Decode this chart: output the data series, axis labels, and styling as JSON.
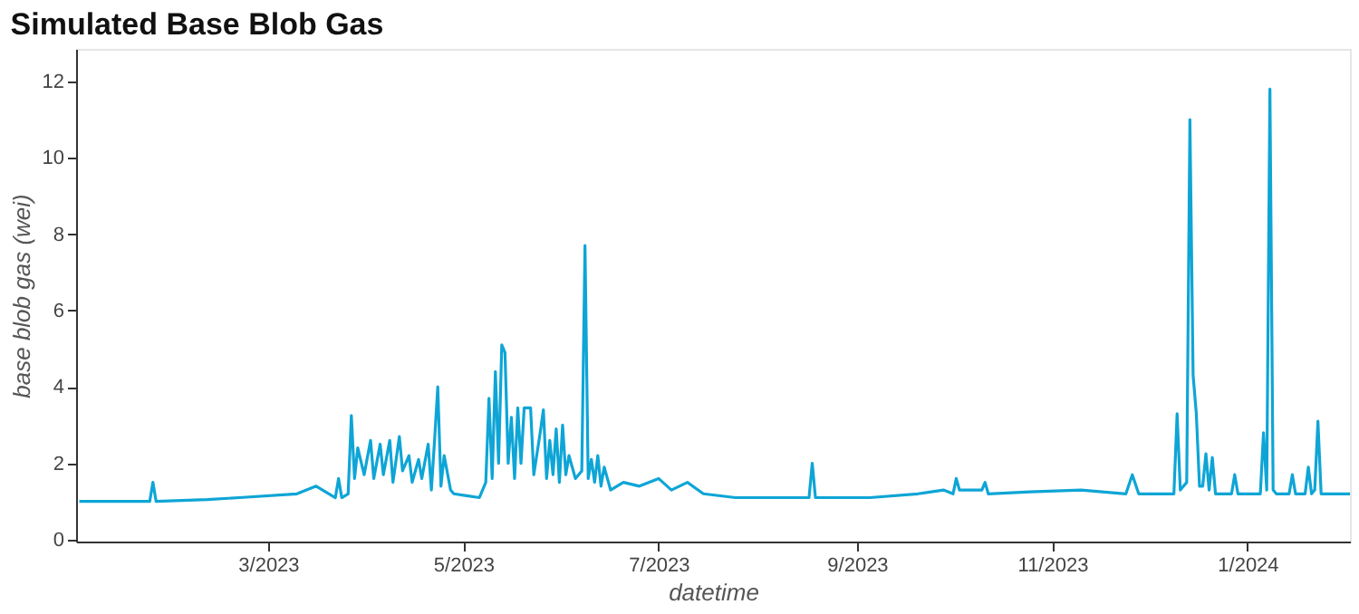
{
  "chart_data": {
    "type": "line",
    "title": "Simulated Base Blob Gas",
    "xlabel": "datetime",
    "ylabel": "base blob gas (wei)",
    "x": [
      "2023-01-01",
      "2023-01-23",
      "2023-01-24",
      "2023-01-25",
      "2023-02-10",
      "2023-02-20",
      "2023-03-10",
      "2023-03-16",
      "2023-03-22",
      "2023-03-23",
      "2023-03-24",
      "2023-03-26",
      "2023-03-27",
      "2023-03-28",
      "2023-03-29",
      "2023-03-31",
      "2023-04-02",
      "2023-04-03",
      "2023-04-05",
      "2023-04-06",
      "2023-04-08",
      "2023-04-09",
      "2023-04-11",
      "2023-04-12",
      "2023-04-14",
      "2023-04-15",
      "2023-04-17",
      "2023-04-18",
      "2023-04-20",
      "2023-04-21",
      "2023-04-22",
      "2023-04-23",
      "2023-04-24",
      "2023-04-25",
      "2023-04-27",
      "2023-04-28",
      "2023-05-02",
      "2023-05-06",
      "2023-05-08",
      "2023-05-09",
      "2023-05-10",
      "2023-05-11",
      "2023-05-12",
      "2023-05-13",
      "2023-05-14",
      "2023-05-15",
      "2023-05-16",
      "2023-05-17",
      "2023-05-18",
      "2023-05-19",
      "2023-05-20",
      "2023-05-22",
      "2023-05-23",
      "2023-05-25",
      "2023-05-26",
      "2023-05-27",
      "2023-05-28",
      "2023-05-29",
      "2023-05-30",
      "2023-05-31",
      "2023-06-01",
      "2023-06-02",
      "2023-06-03",
      "2023-06-05",
      "2023-06-07",
      "2023-06-08",
      "2023-06-09",
      "2023-06-10",
      "2023-06-11",
      "2023-06-12",
      "2023-06-13",
      "2023-06-14",
      "2023-06-16",
      "2023-06-20",
      "2023-06-25",
      "2023-07-01",
      "2023-07-05",
      "2023-07-10",
      "2023-07-15",
      "2023-07-25",
      "2023-08-10",
      "2023-08-17",
      "2023-08-18",
      "2023-08-19",
      "2023-09-05",
      "2023-09-20",
      "2023-09-28",
      "2023-10-01",
      "2023-10-02",
      "2023-10-03",
      "2023-10-10",
      "2023-10-11",
      "2023-10-12",
      "2023-10-25",
      "2023-11-10",
      "2023-11-24",
      "2023-11-26",
      "2023-11-28",
      "2023-12-08",
      "2023-12-09",
      "2023-12-10",
      "2023-12-11",
      "2023-12-13",
      "2023-12-14",
      "2023-12-15",
      "2023-12-16",
      "2023-12-17",
      "2023-12-18",
      "2023-12-19",
      "2023-12-20",
      "2023-12-21",
      "2023-12-22",
      "2023-12-27",
      "2023-12-28",
      "2023-12-29",
      "2024-01-05",
      "2024-01-06",
      "2024-01-07",
      "2024-01-08",
      "2024-01-09",
      "2024-01-10",
      "2024-01-14",
      "2024-01-15",
      "2024-01-16",
      "2024-01-19",
      "2024-01-20",
      "2024-01-21",
      "2024-01-22",
      "2024-01-23",
      "2024-01-24",
      "2024-02-02"
    ],
    "values": [
      1.0,
      1.0,
      1.5,
      1.0,
      1.05,
      1.1,
      1.2,
      1.4,
      1.1,
      1.6,
      1.1,
      1.2,
      3.25,
      1.6,
      2.4,
      1.7,
      2.6,
      1.6,
      2.5,
      1.7,
      2.6,
      1.5,
      2.7,
      1.8,
      2.2,
      1.5,
      2.1,
      1.6,
      2.5,
      1.3,
      2.6,
      4.0,
      1.4,
      2.2,
      1.3,
      1.2,
      1.15,
      1.1,
      1.5,
      3.7,
      1.6,
      4.4,
      2.0,
      5.1,
      4.9,
      2.0,
      3.2,
      1.6,
      3.45,
      2.0,
      3.45,
      3.45,
      1.7,
      2.8,
      3.4,
      1.6,
      2.6,
      1.7,
      2.9,
      1.5,
      3.0,
      1.7,
      2.2,
      1.6,
      1.8,
      7.7,
      1.6,
      2.1,
      1.5,
      2.2,
      1.4,
      1.9,
      1.3,
      1.5,
      1.4,
      1.6,
      1.3,
      1.5,
      1.2,
      1.1,
      1.1,
      1.1,
      2.0,
      1.1,
      1.1,
      1.2,
      1.3,
      1.2,
      1.6,
      1.3,
      1.3,
      1.5,
      1.2,
      1.25,
      1.3,
      1.2,
      1.7,
      1.2,
      1.2,
      1.2,
      3.3,
      1.3,
      1.5,
      11.0,
      4.3,
      3.3,
      1.4,
      1.4,
      2.25,
      1.3,
      2.15,
      1.2,
      1.2,
      1.7,
      1.2,
      1.2,
      2.8,
      1.3,
      11.8,
      1.3,
      1.2,
      1.2,
      1.7,
      1.2,
      1.2,
      1.9,
      1.2,
      1.3,
      3.1,
      1.2,
      1.2
    ],
    "color": "#0ea5d6",
    "xlim": [
      "2022-12-31",
      "2024-02-02"
    ],
    "xticks": [
      {
        "value": "2023-03-01",
        "label": "3/2023"
      },
      {
        "value": "2023-05-01",
        "label": "5/2023"
      },
      {
        "value": "2023-07-01",
        "label": "7/2023"
      },
      {
        "value": "2023-09-01",
        "label": "9/2023"
      },
      {
        "value": "2023-11-01",
        "label": "11/2023"
      },
      {
        "value": "2024-01-01",
        "label": "1/2024"
      }
    ],
    "ylim": [
      -0.05,
      12.85
    ],
    "yticks": [
      0,
      2,
      4,
      6,
      8,
      10,
      12
    ],
    "grid": false,
    "marker": "none",
    "line_style": "solid"
  }
}
